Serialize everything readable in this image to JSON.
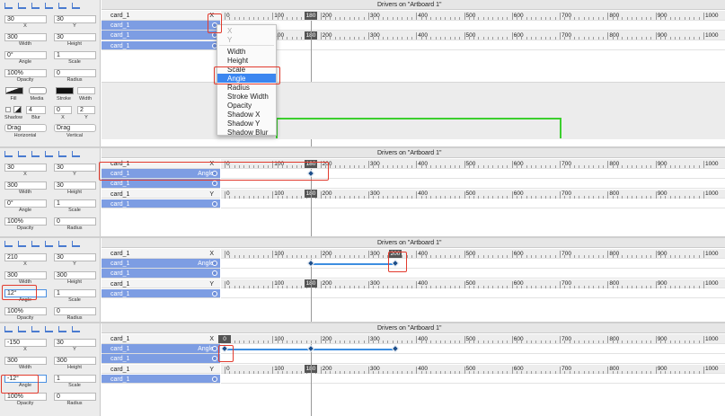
{
  "header": "Drivers on \"Artboard 1\"",
  "ruler": [
    "0",
    "100",
    "200",
    "300",
    "400",
    "500",
    "600",
    "700",
    "800",
    "900",
    "1000"
  ],
  "playhead": "180",
  "labels": {
    "x": "X",
    "y": "Y",
    "width": "Width",
    "height": "Height",
    "angle": "Angle",
    "scale": "Scale",
    "opacity": "Opacity",
    "radius": "Radius",
    "fill": "Fill",
    "media": "Media",
    "stroke": "Stroke",
    "stroke_width": "Width",
    "shadow": "Shadow",
    "blur": "Blur",
    "horizontal": "Horizontal",
    "vertical": "Vertical"
  },
  "panels": [
    {
      "fields": {
        "x": "30",
        "y": "30",
        "width": "300",
        "height": "30",
        "angle": "0°",
        "scale": "1",
        "opacity": "100%",
        "radius": "0"
      },
      "badge": "180",
      "rows": [
        {
          "name": "card_1",
          "prop": "X"
        },
        {
          "name": "card_1"
        },
        {
          "name": "card_1"
        },
        {
          "name": "card_1"
        }
      ]
    },
    {
      "fields": {
        "x": "30",
        "y": "30",
        "width": "300",
        "height": "30",
        "angle": "0°",
        "scale": "1",
        "opacity": "100%",
        "radius": "0"
      },
      "badge": "180",
      "rows": [
        {
          "name": "card_1",
          "prop": "X"
        },
        {
          "name": "card_1",
          "prop": "Angle"
        },
        {
          "name": "card_1"
        },
        {
          "name": "card_1",
          "prop": "Y"
        },
        {
          "name": "card_1"
        }
      ]
    },
    {
      "fields": {
        "x": "210",
        "y": "30",
        "width": "300",
        "height": "300",
        "angle": "12°",
        "scale": "1",
        "opacity": "100%",
        "radius": "0"
      },
      "badge": "200",
      "rows": [
        {
          "name": "card_1",
          "prop": "X"
        },
        {
          "name": "card_1",
          "prop": "Angle"
        },
        {
          "name": "card_1"
        },
        {
          "name": "card_1",
          "prop": "Y"
        },
        {
          "name": "card_1"
        }
      ]
    },
    {
      "fields": {
        "x": "-150",
        "y": "30",
        "width": "300",
        "height": "300",
        "angle": "-12°",
        "scale": "1",
        "opacity": "100%",
        "radius": "0"
      },
      "badge": "0",
      "rows": [
        {
          "name": "card_1",
          "prop": "X"
        },
        {
          "name": "card_1",
          "prop": "Angle"
        },
        {
          "name": "card_1"
        },
        {
          "name": "card_1",
          "prop": "Y"
        },
        {
          "name": "card_1"
        }
      ]
    }
  ],
  "extra": {
    "blur": "4",
    "shadow_x": "0",
    "shadow_y": "2",
    "drag_h": "Drag",
    "drag_v": "Drag"
  },
  "menu": [
    "X",
    "Y",
    "Width",
    "Height",
    "Scale",
    "Angle",
    "Radius",
    "Stroke Width",
    "Opacity",
    "Shadow X",
    "Shadow Y",
    "Shadow Blur"
  ]
}
